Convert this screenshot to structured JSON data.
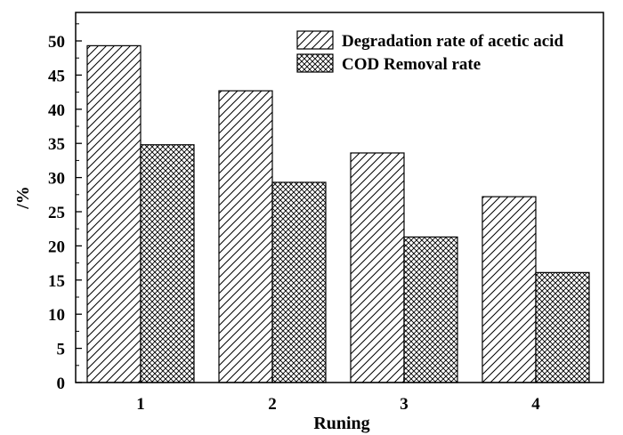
{
  "chart_data": {
    "type": "bar",
    "xlabel": "Runing",
    "ylabel": "/%",
    "ylim": [
      0,
      55
    ],
    "yticks": [
      0,
      5,
      10,
      15,
      20,
      25,
      30,
      35,
      40,
      45,
      50
    ],
    "categories": [
      "1",
      "2",
      "3",
      "4"
    ],
    "series": [
      {
        "name": "Degradation rate of acetic acid",
        "values": [
          49.3,
          42.7,
          33.6,
          27.2
        ],
        "pattern": "diagonal-hatch"
      },
      {
        "name": "COD Removal rate",
        "values": [
          34.8,
          29.3,
          21.3,
          16.1
        ],
        "pattern": "cross-hatch"
      }
    ],
    "legend_position": "top-right",
    "grid": false
  }
}
